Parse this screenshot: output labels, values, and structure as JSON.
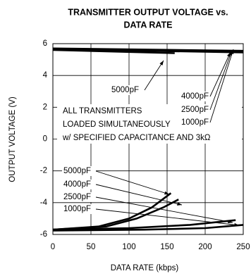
{
  "chart_data": {
    "type": "line",
    "title": [
      "TRANSMITTER OUTPUT VOLTAGE vs.",
      "DATA RATE"
    ],
    "x_label": "DATA RATE (kbps)",
    "y_label": "OUTPUT VOLTAGE (V)",
    "xlim": [
      0,
      250
    ],
    "xticks": [
      0,
      50,
      100,
      150,
      200,
      250
    ],
    "ylim": [
      -6,
      6
    ],
    "yticks": [
      6,
      4,
      2,
      0,
      -2,
      -4,
      -6
    ],
    "grid": true,
    "series": [
      {
        "name": "5000pF",
        "color": "#000000",
        "x": [
          0,
          160,
          160,
          0,
          60,
          100,
          130,
          155
        ],
        "values": [
          5.6,
          5.4,
          null,
          -5.7,
          -5.5,
          -5.0,
          -4.3,
          -3.4
        ]
      },
      {
        "name": "4000pF",
        "color": "#000000",
        "x": [
          0,
          250,
          250,
          0,
          70,
          110,
          145,
          165
        ],
        "values": [
          5.65,
          5.45,
          null,
          -5.7,
          -5.5,
          -5.0,
          -4.3,
          -3.8
        ]
      },
      {
        "name": "2500pF",
        "color": "#000000",
        "x": [
          0,
          250,
          250,
          0,
          100,
          180,
          240
        ],
        "values": [
          5.65,
          5.5,
          null,
          -5.7,
          -5.6,
          -5.4,
          -5.1
        ]
      },
      {
        "name": "1000pF",
        "color": "#000000",
        "x": [
          0,
          250,
          250,
          0,
          120,
          200,
          250
        ],
        "values": [
          5.7,
          5.55,
          null,
          -5.75,
          -5.7,
          -5.6,
          -5.4
        ]
      }
    ],
    "annotations": [
      "5000pF",
      "4000pF",
      "2500pF",
      "1000pF"
    ],
    "note": [
      "ALL TRANSMITTERS",
      "LOADED SIMULTANEOUSLY",
      "w/ SPECIFIED CAPACITANCE AND 3kΩ"
    ]
  }
}
